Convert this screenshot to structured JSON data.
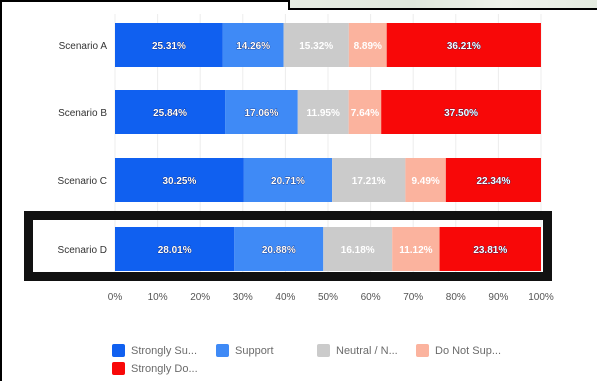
{
  "chart_data": {
    "type": "bar",
    "orientation": "horizontal",
    "stacked": true,
    "categories": [
      "Scenario A",
      "Scenario B",
      "Scenario C",
      "Scenario D"
    ],
    "series": [
      {
        "name": "Strongly Su...",
        "color": "#1060f0",
        "values": [
          25.31,
          25.84,
          30.25,
          28.01
        ],
        "labels": [
          "25.31%",
          "25.84%",
          "30.25%",
          "28.01%"
        ]
      },
      {
        "name": "Support",
        "color": "#3f8af6",
        "values": [
          14.26,
          17.06,
          20.71,
          20.88
        ],
        "labels": [
          "14.26%",
          "17.06%",
          "20.71%",
          "20.88%"
        ]
      },
      {
        "name": "Neutral / N...",
        "color": "#cbcbcb",
        "values": [
          15.32,
          11.95,
          17.21,
          16.18
        ],
        "labels": [
          "15.32%",
          "11.95%",
          "17.21%",
          "16.18%"
        ]
      },
      {
        "name": "Do Not Sup...",
        "color": "#fbb39e",
        "values": [
          8.89,
          7.64,
          9.49,
          11.12
        ],
        "labels": [
          "8.89%",
          "7.64%",
          "9.49%",
          "11.12%"
        ]
      },
      {
        "name": "Strongly Do...",
        "color": "#f80808",
        "values": [
          36.21,
          37.5,
          22.34,
          23.81
        ],
        "labels": [
          "36.21%",
          "37.50%",
          "22.34%",
          "23.81%"
        ]
      }
    ],
    "xticks": [
      "0%",
      "10%",
      "20%",
      "30%",
      "40%",
      "50%",
      "60%",
      "70%",
      "80%",
      "90%",
      "100%"
    ],
    "xlim": [
      0,
      100
    ],
    "grid": true,
    "legend_position": "bottom",
    "highlighted_category": "Scenario D"
  }
}
